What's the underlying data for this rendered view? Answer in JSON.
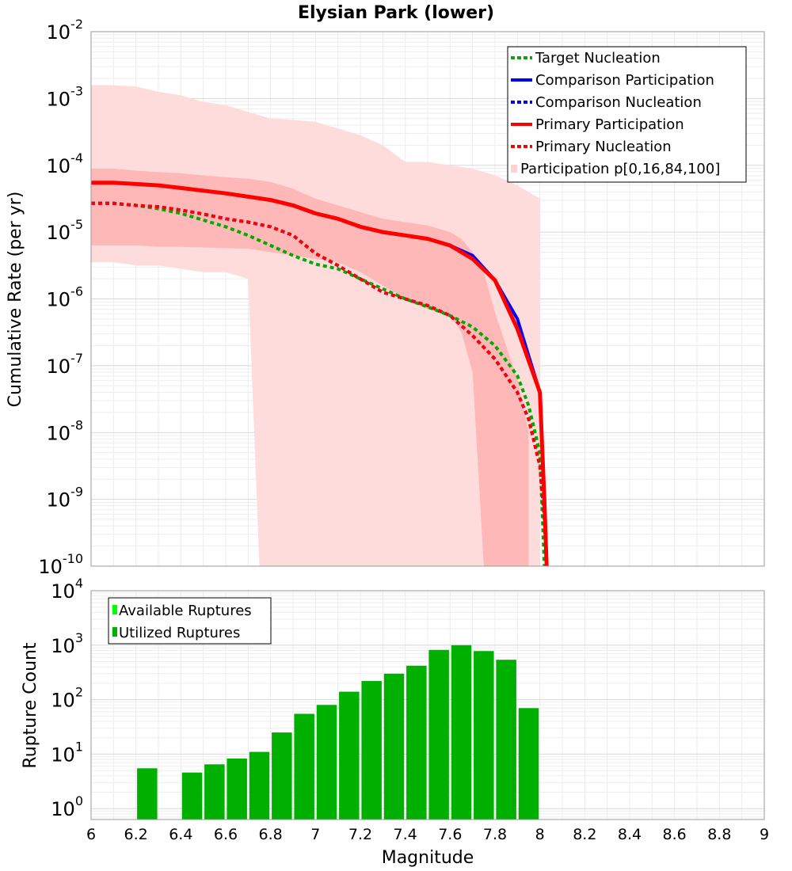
{
  "chart_data": [
    {
      "type": "line",
      "title": "Elysian Park (lower)",
      "xlabel": "Magnitude",
      "ylabel": "Cumulative Rate (per yr)",
      "xlim": [
        6,
        9
      ],
      "ylim_log10": [
        -10,
        -2
      ],
      "y_ticks": [
        "10",
        "10",
        "10",
        "10",
        "10",
        "10",
        "10",
        "10",
        "10"
      ],
      "y_tick_exponents": [
        "-10",
        "-9",
        "-8",
        "-7",
        "-6",
        "-5",
        "-4",
        "-3",
        "-2"
      ],
      "grid": true,
      "legend_position": "top-right",
      "legend": [
        {
          "label": "Target Nucleation",
          "color": "#00aa00",
          "style": "dotted"
        },
        {
          "label": "Comparison Participation",
          "color": "#0000ff",
          "style": "solid"
        },
        {
          "label": "Comparison Nucleation",
          "color": "#0000ff",
          "style": "dotted"
        },
        {
          "label": "Primary Participation",
          "color": "#ff0000",
          "style": "solid"
        },
        {
          "label": "Primary Nucleation",
          "color": "#ff0000",
          "style": "dotted"
        },
        {
          "label": "Participation p[0,16,84,100]",
          "color": "#ffd0d0",
          "style": "band"
        }
      ],
      "bands": [
        {
          "name": "p0-p100",
          "color": "#ffdcdc",
          "x": [
            6.0,
            6.1,
            6.2,
            6.3,
            6.4,
            6.5,
            6.6,
            6.7,
            6.75,
            6.8,
            6.9,
            7.0,
            7.1,
            7.2,
            7.3,
            7.4,
            7.5,
            7.6,
            7.7,
            7.8,
            7.9,
            7.95,
            8.0
          ],
          "upper": [
            -2.8,
            -2.8,
            -2.82,
            -2.9,
            -2.95,
            -3.05,
            -3.1,
            -3.2,
            -3.25,
            -3.3,
            -3.32,
            -3.35,
            -3.45,
            -3.55,
            -3.7,
            -3.95,
            -3.95,
            -4.0,
            -4.05,
            -4.15,
            -4.3,
            -4.4,
            -4.5
          ],
          "lower": [
            -5.45,
            -5.45,
            -5.5,
            -5.5,
            -5.55,
            -5.6,
            -5.6,
            -5.7,
            -10,
            -10,
            -10,
            -10,
            -10,
            -10,
            -10,
            -10,
            -10,
            -10,
            -10,
            -10,
            -10,
            -10,
            -10
          ]
        },
        {
          "name": "p16-p84",
          "color": "#ffb8b8",
          "x": [
            6.0,
            6.1,
            6.2,
            6.3,
            6.4,
            6.5,
            6.6,
            6.7,
            6.8,
            6.9,
            7.0,
            7.1,
            7.2,
            7.3,
            7.4,
            7.5,
            7.6,
            7.65,
            7.7,
            7.75,
            7.8,
            7.9,
            7.95
          ],
          "upper": [
            -4.05,
            -4.05,
            -4.08,
            -4.1,
            -4.12,
            -4.15,
            -4.18,
            -4.2,
            -4.25,
            -4.35,
            -4.5,
            -4.6,
            -4.7,
            -4.8,
            -4.85,
            -4.9,
            -5.0,
            -5.1,
            -5.3,
            -5.6,
            -6.2,
            -7.2,
            -8.0
          ],
          "lower": [
            -5.2,
            -5.2,
            -5.2,
            -5.22,
            -5.22,
            -5.23,
            -5.24,
            -5.25,
            -5.3,
            -5.35,
            -5.4,
            -5.45,
            -5.6,
            -5.8,
            -6.0,
            -6.15,
            -6.25,
            -6.5,
            -7.1,
            -10,
            -10,
            -10,
            -10
          ]
        }
      ],
      "series": [
        {
          "name": "Target Nucleation",
          "color": "#00aa00",
          "dash": "5,4",
          "width": 4,
          "x": [
            6.0,
            6.1,
            6.2,
            6.3,
            6.4,
            6.5,
            6.6,
            6.7,
            6.8,
            6.9,
            7.0,
            7.1,
            7.2,
            7.3,
            7.4,
            7.5,
            7.6,
            7.7,
            7.8,
            7.9,
            7.95,
            8.0,
            8.02
          ],
          "y": [
            -4.57,
            -4.57,
            -4.6,
            -4.65,
            -4.72,
            -4.82,
            -4.92,
            -5.05,
            -5.2,
            -5.35,
            -5.48,
            -5.55,
            -5.7,
            -5.85,
            -6.0,
            -6.12,
            -6.25,
            -6.42,
            -6.7,
            -7.15,
            -7.6,
            -8.3,
            -10
          ]
        },
        {
          "name": "Comparison Participation",
          "color": "#0000ff",
          "dash": "",
          "width": 4,
          "x": [
            6.0,
            6.1,
            6.2,
            6.3,
            6.4,
            6.5,
            6.6,
            6.7,
            6.8,
            6.9,
            7.0,
            7.1,
            7.2,
            7.3,
            7.4,
            7.5,
            7.6,
            7.7,
            7.8,
            7.9,
            8.0,
            8.02,
            8.03
          ],
          "y": [
            -4.26,
            -4.26,
            -4.28,
            -4.3,
            -4.34,
            -4.38,
            -4.42,
            -4.47,
            -4.52,
            -4.6,
            -4.72,
            -4.8,
            -4.92,
            -5.0,
            -5.05,
            -5.1,
            -5.2,
            -5.35,
            -5.72,
            -6.3,
            -7.4,
            -9.0,
            -10
          ]
        },
        {
          "name": "Comparison Nucleation",
          "color": "#0000ff",
          "dash": "5,4",
          "width": 4,
          "x": [
            6.0,
            6.1,
            6.2,
            6.3,
            6.4,
            6.5,
            6.6,
            6.7,
            6.8,
            6.9,
            7.0,
            7.1,
            7.2,
            7.3,
            7.4,
            7.5,
            7.6,
            7.7,
            7.8,
            7.9,
            7.95,
            8.0,
            8.02,
            8.03
          ],
          "y": [
            -4.57,
            -4.57,
            -4.6,
            -4.62,
            -4.67,
            -4.73,
            -4.8,
            -4.85,
            -4.92,
            -5.05,
            -5.32,
            -5.5,
            -5.7,
            -5.9,
            -6.0,
            -6.1,
            -6.25,
            -6.55,
            -6.9,
            -7.4,
            -7.8,
            -8.5,
            -9.3,
            -10
          ]
        },
        {
          "name": "Primary Participation",
          "color": "#ff0000",
          "dash": "",
          "width": 5,
          "x": [
            6.0,
            6.1,
            6.2,
            6.3,
            6.4,
            6.5,
            6.6,
            6.7,
            6.8,
            6.9,
            7.0,
            7.1,
            7.2,
            7.3,
            7.4,
            7.5,
            7.6,
            7.7,
            7.8,
            7.9,
            8.0,
            8.02,
            8.03
          ],
          "y": [
            -4.26,
            -4.26,
            -4.28,
            -4.3,
            -4.34,
            -4.38,
            -4.42,
            -4.47,
            -4.52,
            -4.6,
            -4.72,
            -4.8,
            -4.92,
            -5.0,
            -5.05,
            -5.1,
            -5.2,
            -5.4,
            -5.72,
            -6.45,
            -7.4,
            -9.0,
            -10
          ]
        },
        {
          "name": "Primary Nucleation",
          "color": "#ff0000",
          "dash": "5,4",
          "width": 4,
          "x": [
            6.0,
            6.1,
            6.2,
            6.3,
            6.4,
            6.5,
            6.6,
            6.7,
            6.8,
            6.9,
            7.0,
            7.1,
            7.2,
            7.3,
            7.4,
            7.5,
            7.6,
            7.7,
            7.8,
            7.9,
            7.95,
            8.0,
            8.02,
            8.03
          ],
          "y": [
            -4.57,
            -4.57,
            -4.6,
            -4.62,
            -4.67,
            -4.73,
            -4.8,
            -4.85,
            -4.92,
            -5.05,
            -5.32,
            -5.5,
            -5.7,
            -5.9,
            -6.0,
            -6.1,
            -6.25,
            -6.55,
            -6.9,
            -7.4,
            -7.8,
            -8.5,
            -9.3,
            -10
          ]
        }
      ]
    },
    {
      "type": "bar",
      "title": "",
      "xlabel": "Magnitude",
      "ylabel": "Rupture Count",
      "xlim": [
        6,
        9
      ],
      "ylim_log10": [
        -0.2,
        4
      ],
      "x_ticks": [
        "6",
        "6.2",
        "6.4",
        "6.6",
        "6.8",
        "7",
        "7.2",
        "7.4",
        "7.6",
        "7.8",
        "8",
        "8.2",
        "8.4",
        "8.6",
        "8.8",
        "9"
      ],
      "y_ticks": [
        "10",
        "10",
        "10",
        "10",
        "10"
      ],
      "y_tick_exponents": [
        "0",
        "1",
        "2",
        "3",
        "4"
      ],
      "grid": true,
      "legend_position": "top-left",
      "legend": [
        {
          "label": "Available Ruptures",
          "color": "#00ff00"
        },
        {
          "label": "Utilized Ruptures",
          "color": "#00b000"
        }
      ],
      "bar_width": 0.09,
      "color": "#00b000",
      "categories": [
        6.25,
        6.45,
        6.55,
        6.65,
        6.75,
        6.85,
        6.95,
        7.05,
        7.15,
        7.25,
        7.35,
        7.45,
        7.55,
        7.65,
        7.75,
        7.85,
        7.95
      ],
      "values": [
        5.5,
        4.6,
        6.5,
        8.3,
        11,
        25,
        55,
        80,
        140,
        220,
        300,
        420,
        820,
        1000,
        780,
        540,
        70
      ]
    }
  ]
}
